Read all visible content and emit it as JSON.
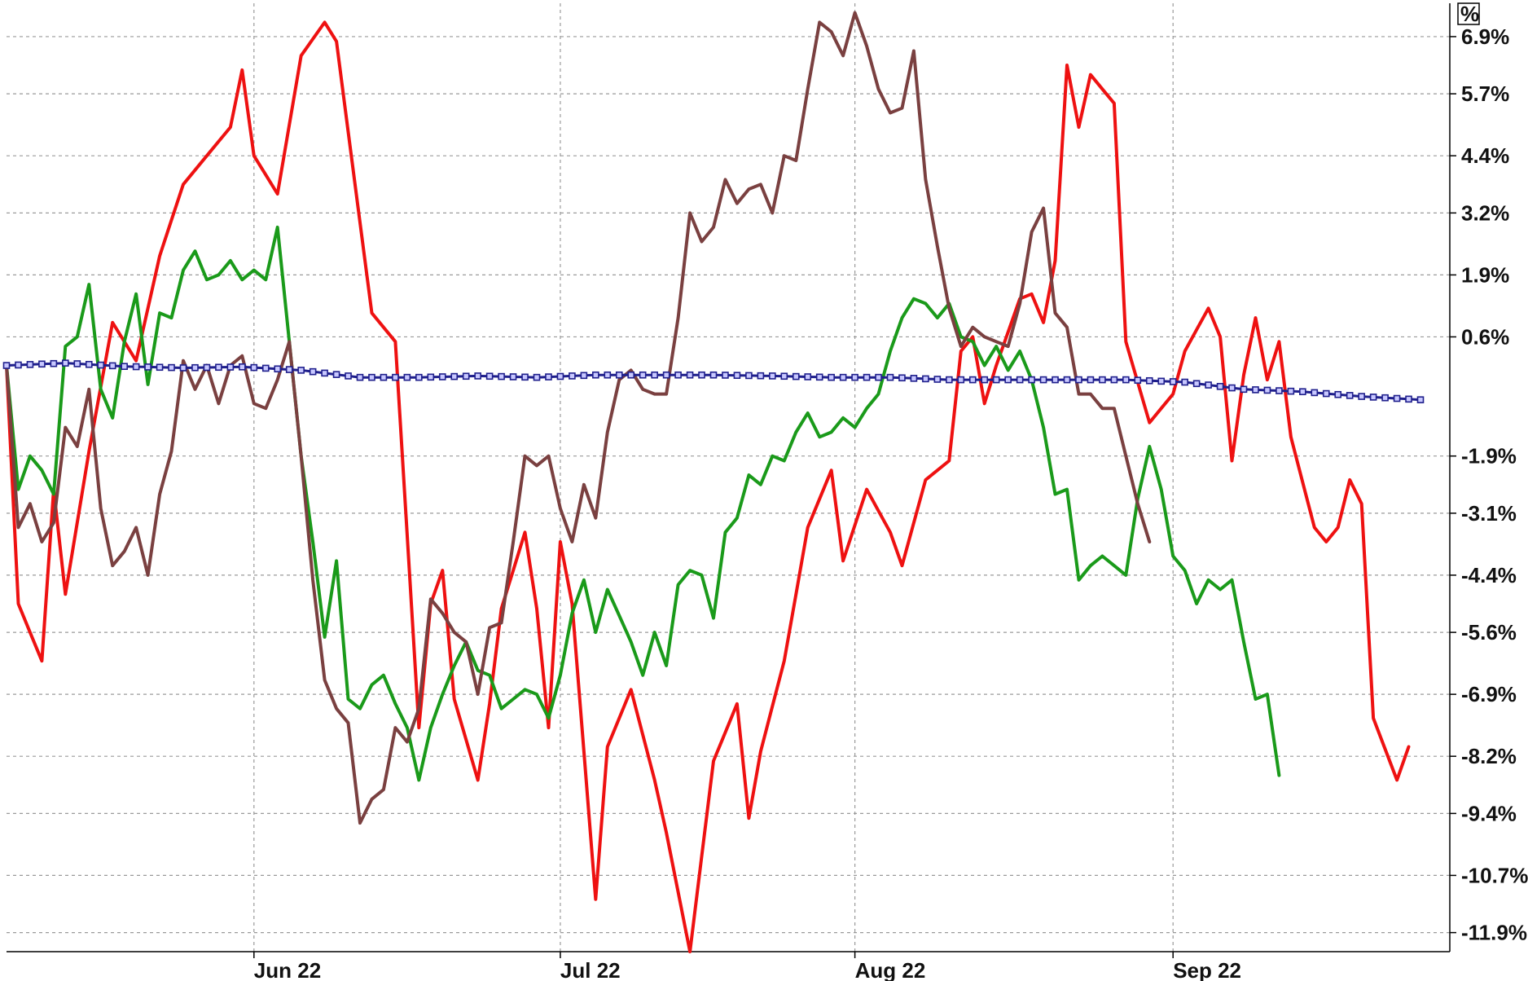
{
  "chart_data": {
    "type": "line",
    "title": "",
    "xlabel": "",
    "ylabel": "",
    "unit_label": "%",
    "grid": true,
    "legend": "none",
    "n_points": 121,
    "ylim": [
      -12.3,
      7.6
    ],
    "y_ticks": [
      6.9,
      5.7,
      4.4,
      3.2,
      1.9,
      0.6,
      -1.9,
      -3.1,
      -4.4,
      -5.6,
      -6.9,
      -8.2,
      -9.4,
      -10.7,
      -11.9
    ],
    "y_tick_labels": [
      "6.9%",
      "5.7%",
      "4.4%",
      "3.2%",
      "1.9%",
      "0.6%",
      "-1.9%",
      "-3.1%",
      "-4.4%",
      "-5.6%",
      "-6.9%",
      "-8.2%",
      "-9.4%",
      "-10.7%",
      "-11.9%"
    ],
    "x_ticks": [
      {
        "label": "Jun 22",
        "index": 21
      },
      {
        "label": "Jul 22",
        "index": 47
      },
      {
        "label": "Aug 22",
        "index": 72
      },
      {
        "label": "Sep 22",
        "index": 99
      }
    ],
    "series": [
      {
        "color": "#ee1111",
        "keypoints": [
          [
            0,
            0
          ],
          [
            1,
            -5
          ],
          [
            3,
            -6.2
          ],
          [
            4,
            -2.6
          ],
          [
            5,
            -4.8
          ],
          [
            7,
            -1.8
          ],
          [
            9,
            0.9
          ],
          [
            11,
            0.1
          ],
          [
            13,
            2.3
          ],
          [
            15,
            3.8
          ],
          [
            17,
            4.4
          ],
          [
            19,
            5.0
          ],
          [
            20,
            6.2
          ],
          [
            21,
            4.4
          ],
          [
            23,
            3.6
          ],
          [
            25,
            6.5
          ],
          [
            27,
            7.2
          ],
          [
            28,
            6.8
          ],
          [
            31,
            1.1
          ],
          [
            33,
            0.5
          ],
          [
            35,
            -7.6
          ],
          [
            36,
            -5.0
          ],
          [
            37,
            -4.3
          ],
          [
            38,
            -7.0
          ],
          [
            40,
            -8.7
          ],
          [
            41,
            -7.1
          ],
          [
            42,
            -5.1
          ],
          [
            44,
            -3.5
          ],
          [
            45,
            -5.1
          ],
          [
            46,
            -7.6
          ],
          [
            47,
            -3.7
          ],
          [
            48,
            -5.0
          ],
          [
            50,
            -11.2
          ],
          [
            51,
            -8.0
          ],
          [
            53,
            -6.8
          ],
          [
            55,
            -8.7
          ],
          [
            56,
            -9.8
          ],
          [
            58,
            -12.3
          ],
          [
            60,
            -8.3
          ],
          [
            62,
            -7.1
          ],
          [
            63,
            -9.5
          ],
          [
            64,
            -8.1
          ],
          [
            66,
            -6.2
          ],
          [
            68,
            -3.4
          ],
          [
            70,
            -2.2
          ],
          [
            71,
            -4.1
          ],
          [
            73,
            -2.6
          ],
          [
            75,
            -3.5
          ],
          [
            76,
            -4.2
          ],
          [
            78,
            -2.4
          ],
          [
            80,
            -2.0
          ],
          [
            81,
            0.3
          ],
          [
            82,
            0.6
          ],
          [
            83,
            -0.8
          ],
          [
            84,
            0.0
          ],
          [
            86,
            1.4
          ],
          [
            87,
            1.5
          ],
          [
            88,
            0.9
          ],
          [
            89,
            2.2
          ],
          [
            90,
            6.3
          ],
          [
            91,
            5.0
          ],
          [
            92,
            6.1
          ],
          [
            94,
            5.5
          ],
          [
            95,
            0.5
          ],
          [
            97,
            -1.2
          ],
          [
            99,
            -0.6
          ],
          [
            100,
            0.3
          ],
          [
            102,
            1.2
          ],
          [
            103,
            0.6
          ],
          [
            104,
            -2.0
          ],
          [
            105,
            -0.2
          ],
          [
            106,
            1.0
          ],
          [
            107,
            -0.3
          ],
          [
            108,
            0.5
          ],
          [
            109,
            -1.5
          ],
          [
            111,
            -3.4
          ],
          [
            112,
            -3.7
          ],
          [
            113,
            -3.4
          ],
          [
            114,
            -2.4
          ],
          [
            115,
            -2.9
          ],
          [
            116,
            -7.4
          ],
          [
            118,
            -8.7
          ],
          [
            119,
            -8.0
          ]
        ]
      },
      {
        "color": "#1a9a1a",
        "keypoints": [
          [
            0,
            0
          ],
          [
            1,
            -2.6
          ],
          [
            2,
            -1.9
          ],
          [
            3,
            -2.2
          ],
          [
            4,
            -2.7
          ],
          [
            5,
            0.4
          ],
          [
            6,
            0.6
          ],
          [
            7,
            1.7
          ],
          [
            8,
            -0.5
          ],
          [
            9,
            -1.1
          ],
          [
            10,
            0.5
          ],
          [
            11,
            1.5
          ],
          [
            12,
            -0.4
          ],
          [
            13,
            1.1
          ],
          [
            14,
            1.0
          ],
          [
            15,
            2.0
          ],
          [
            16,
            2.4
          ],
          [
            17,
            1.8
          ],
          [
            18,
            1.9
          ],
          [
            19,
            2.2
          ],
          [
            20,
            1.8
          ],
          [
            21,
            2.0
          ],
          [
            22,
            1.8
          ],
          [
            23,
            2.9
          ],
          [
            25,
            -1.9
          ],
          [
            26,
            -3.7
          ],
          [
            27,
            -5.7
          ],
          [
            28,
            -4.1
          ],
          [
            29,
            -7.0
          ],
          [
            30,
            -7.2
          ],
          [
            31,
            -6.7
          ],
          [
            32,
            -6.5
          ],
          [
            33,
            -7.1
          ],
          [
            34,
            -7.6
          ],
          [
            35,
            -8.7
          ],
          [
            36,
            -7.6
          ],
          [
            37,
            -6.9
          ],
          [
            38,
            -6.3
          ],
          [
            39,
            -5.8
          ],
          [
            40,
            -6.4
          ],
          [
            41,
            -6.5
          ],
          [
            42,
            -7.2
          ],
          [
            43,
            -7.0
          ],
          [
            44,
            -6.8
          ],
          [
            45,
            -6.9
          ],
          [
            46,
            -7.4
          ],
          [
            47,
            -6.5
          ],
          [
            48,
            -5.2
          ],
          [
            49,
            -4.5
          ],
          [
            50,
            -5.6
          ],
          [
            51,
            -4.7
          ],
          [
            53,
            -5.8
          ],
          [
            54,
            -6.5
          ],
          [
            55,
            -5.6
          ],
          [
            56,
            -6.3
          ],
          [
            57,
            -4.6
          ],
          [
            58,
            -4.3
          ],
          [
            59,
            -4.4
          ],
          [
            60,
            -5.3
          ],
          [
            61,
            -3.5
          ],
          [
            62,
            -3.2
          ],
          [
            63,
            -2.3
          ],
          [
            64,
            -2.5
          ],
          [
            65,
            -1.9
          ],
          [
            66,
            -2.0
          ],
          [
            67,
            -1.4
          ],
          [
            68,
            -1.0
          ],
          [
            69,
            -1.5
          ],
          [
            70,
            -1.4
          ],
          [
            71,
            -1.1
          ],
          [
            72,
            -1.3
          ],
          [
            73,
            -0.9
          ],
          [
            74,
            -0.6
          ],
          [
            75,
            0.3
          ],
          [
            76,
            1.0
          ],
          [
            77,
            1.4
          ],
          [
            78,
            1.3
          ],
          [
            79,
            1.0
          ],
          [
            80,
            1.3
          ],
          [
            81,
            0.6
          ],
          [
            82,
            0.5
          ],
          [
            83,
            0.0
          ],
          [
            84,
            0.4
          ],
          [
            85,
            -0.1
          ],
          [
            86,
            0.3
          ],
          [
            87,
            -0.3
          ],
          [
            88,
            -1.3
          ],
          [
            89,
            -2.7
          ],
          [
            90,
            -2.6
          ],
          [
            91,
            -4.5
          ],
          [
            92,
            -4.2
          ],
          [
            93,
            -4.0
          ],
          [
            94,
            -4.2
          ],
          [
            95,
            -4.4
          ],
          [
            96,
            -2.8
          ],
          [
            97,
            -1.7
          ],
          [
            98,
            -2.6
          ],
          [
            99,
            -4.0
          ],
          [
            100,
            -4.3
          ],
          [
            101,
            -5.0
          ],
          [
            102,
            -4.5
          ],
          [
            103,
            -4.7
          ],
          [
            104,
            -4.5
          ],
          [
            105,
            -5.8
          ],
          [
            106,
            -7.0
          ],
          [
            107,
            -6.9
          ],
          [
            108,
            -8.6
          ]
        ]
      },
      {
        "color": "#7a4040",
        "keypoints": [
          [
            0,
            0
          ],
          [
            1,
            -3.4
          ],
          [
            2,
            -2.9
          ],
          [
            3,
            -3.7
          ],
          [
            4,
            -3.3
          ],
          [
            5,
            -1.3
          ],
          [
            6,
            -1.7
          ],
          [
            7,
            -0.5
          ],
          [
            8,
            -3.0
          ],
          [
            9,
            -4.2
          ],
          [
            10,
            -3.9
          ],
          [
            11,
            -3.4
          ],
          [
            12,
            -4.4
          ],
          [
            13,
            -2.7
          ],
          [
            14,
            -1.8
          ],
          [
            15,
            0.1
          ],
          [
            16,
            -0.5
          ],
          [
            17,
            0.0
          ],
          [
            18,
            -0.8
          ],
          [
            19,
            0.0
          ],
          [
            20,
            0.2
          ],
          [
            21,
            -0.8
          ],
          [
            22,
            -0.9
          ],
          [
            23,
            -0.3
          ],
          [
            24,
            0.5
          ],
          [
            25,
            -1.9
          ],
          [
            26,
            -4.5
          ],
          [
            27,
            -6.6
          ],
          [
            28,
            -7.2
          ],
          [
            29,
            -7.5
          ],
          [
            30,
            -9.6
          ],
          [
            31,
            -9.1
          ],
          [
            32,
            -8.9
          ],
          [
            33,
            -7.6
          ],
          [
            34,
            -7.9
          ],
          [
            35,
            -7.2
          ],
          [
            36,
            -4.9
          ],
          [
            37,
            -5.2
          ],
          [
            38,
            -5.6
          ],
          [
            39,
            -5.8
          ],
          [
            40,
            -6.9
          ],
          [
            41,
            -5.5
          ],
          [
            42,
            -5.4
          ],
          [
            43,
            -3.7
          ],
          [
            44,
            -1.9
          ],
          [
            45,
            -2.1
          ],
          [
            46,
            -1.9
          ],
          [
            47,
            -3.0
          ],
          [
            48,
            -3.7
          ],
          [
            49,
            -2.5
          ],
          [
            50,
            -3.2
          ],
          [
            51,
            -1.4
          ],
          [
            52,
            -0.3
          ],
          [
            53,
            -0.1
          ],
          [
            54,
            -0.5
          ],
          [
            55,
            -0.6
          ],
          [
            56,
            -0.6
          ],
          [
            57,
            1.0
          ],
          [
            58,
            3.2
          ],
          [
            59,
            2.6
          ],
          [
            60,
            2.9
          ],
          [
            61,
            3.9
          ],
          [
            62,
            3.4
          ],
          [
            63,
            3.7
          ],
          [
            64,
            3.8
          ],
          [
            65,
            3.2
          ],
          [
            66,
            4.4
          ],
          [
            67,
            4.3
          ],
          [
            68,
            5.8
          ],
          [
            69,
            7.2
          ],
          [
            70,
            7.0
          ],
          [
            71,
            6.5
          ],
          [
            72,
            7.4
          ],
          [
            73,
            6.7
          ],
          [
            74,
            5.8
          ],
          [
            75,
            5.3
          ],
          [
            76,
            5.4
          ],
          [
            77,
            6.6
          ],
          [
            78,
            3.9
          ],
          [
            79,
            2.5
          ],
          [
            80,
            1.2
          ],
          [
            81,
            0.4
          ],
          [
            82,
            0.8
          ],
          [
            83,
            0.6
          ],
          [
            84,
            0.5
          ],
          [
            85,
            0.4
          ],
          [
            86,
            1.3
          ],
          [
            87,
            2.8
          ],
          [
            88,
            3.3
          ],
          [
            89,
            1.1
          ],
          [
            90,
            0.8
          ],
          [
            91,
            -0.6
          ],
          [
            92,
            -0.6
          ],
          [
            93,
            -0.9
          ],
          [
            94,
            -0.9
          ],
          [
            95,
            -1.9
          ],
          [
            96,
            -2.9
          ],
          [
            97,
            -3.7
          ]
        ]
      },
      {
        "color": "#1f1f8c",
        "marker": "square",
        "keypoints": [
          [
            0,
            0
          ],
          [
            5,
            0.05
          ],
          [
            10,
            -0.02
          ],
          [
            15,
            -0.05
          ],
          [
            20,
            -0.03
          ],
          [
            25,
            -0.1
          ],
          [
            30,
            -0.25
          ],
          [
            35,
            -0.25
          ],
          [
            40,
            -0.22
          ],
          [
            45,
            -0.25
          ],
          [
            50,
            -0.2
          ],
          [
            55,
            -0.2
          ],
          [
            60,
            -0.2
          ],
          [
            65,
            -0.22
          ],
          [
            70,
            -0.25
          ],
          [
            75,
            -0.25
          ],
          [
            80,
            -0.3
          ],
          [
            85,
            -0.3
          ],
          [
            90,
            -0.3
          ],
          [
            95,
            -0.3
          ],
          [
            100,
            -0.35
          ],
          [
            105,
            -0.5
          ],
          [
            110,
            -0.55
          ],
          [
            115,
            -0.65
          ],
          [
            120,
            -0.72
          ]
        ]
      }
    ]
  }
}
